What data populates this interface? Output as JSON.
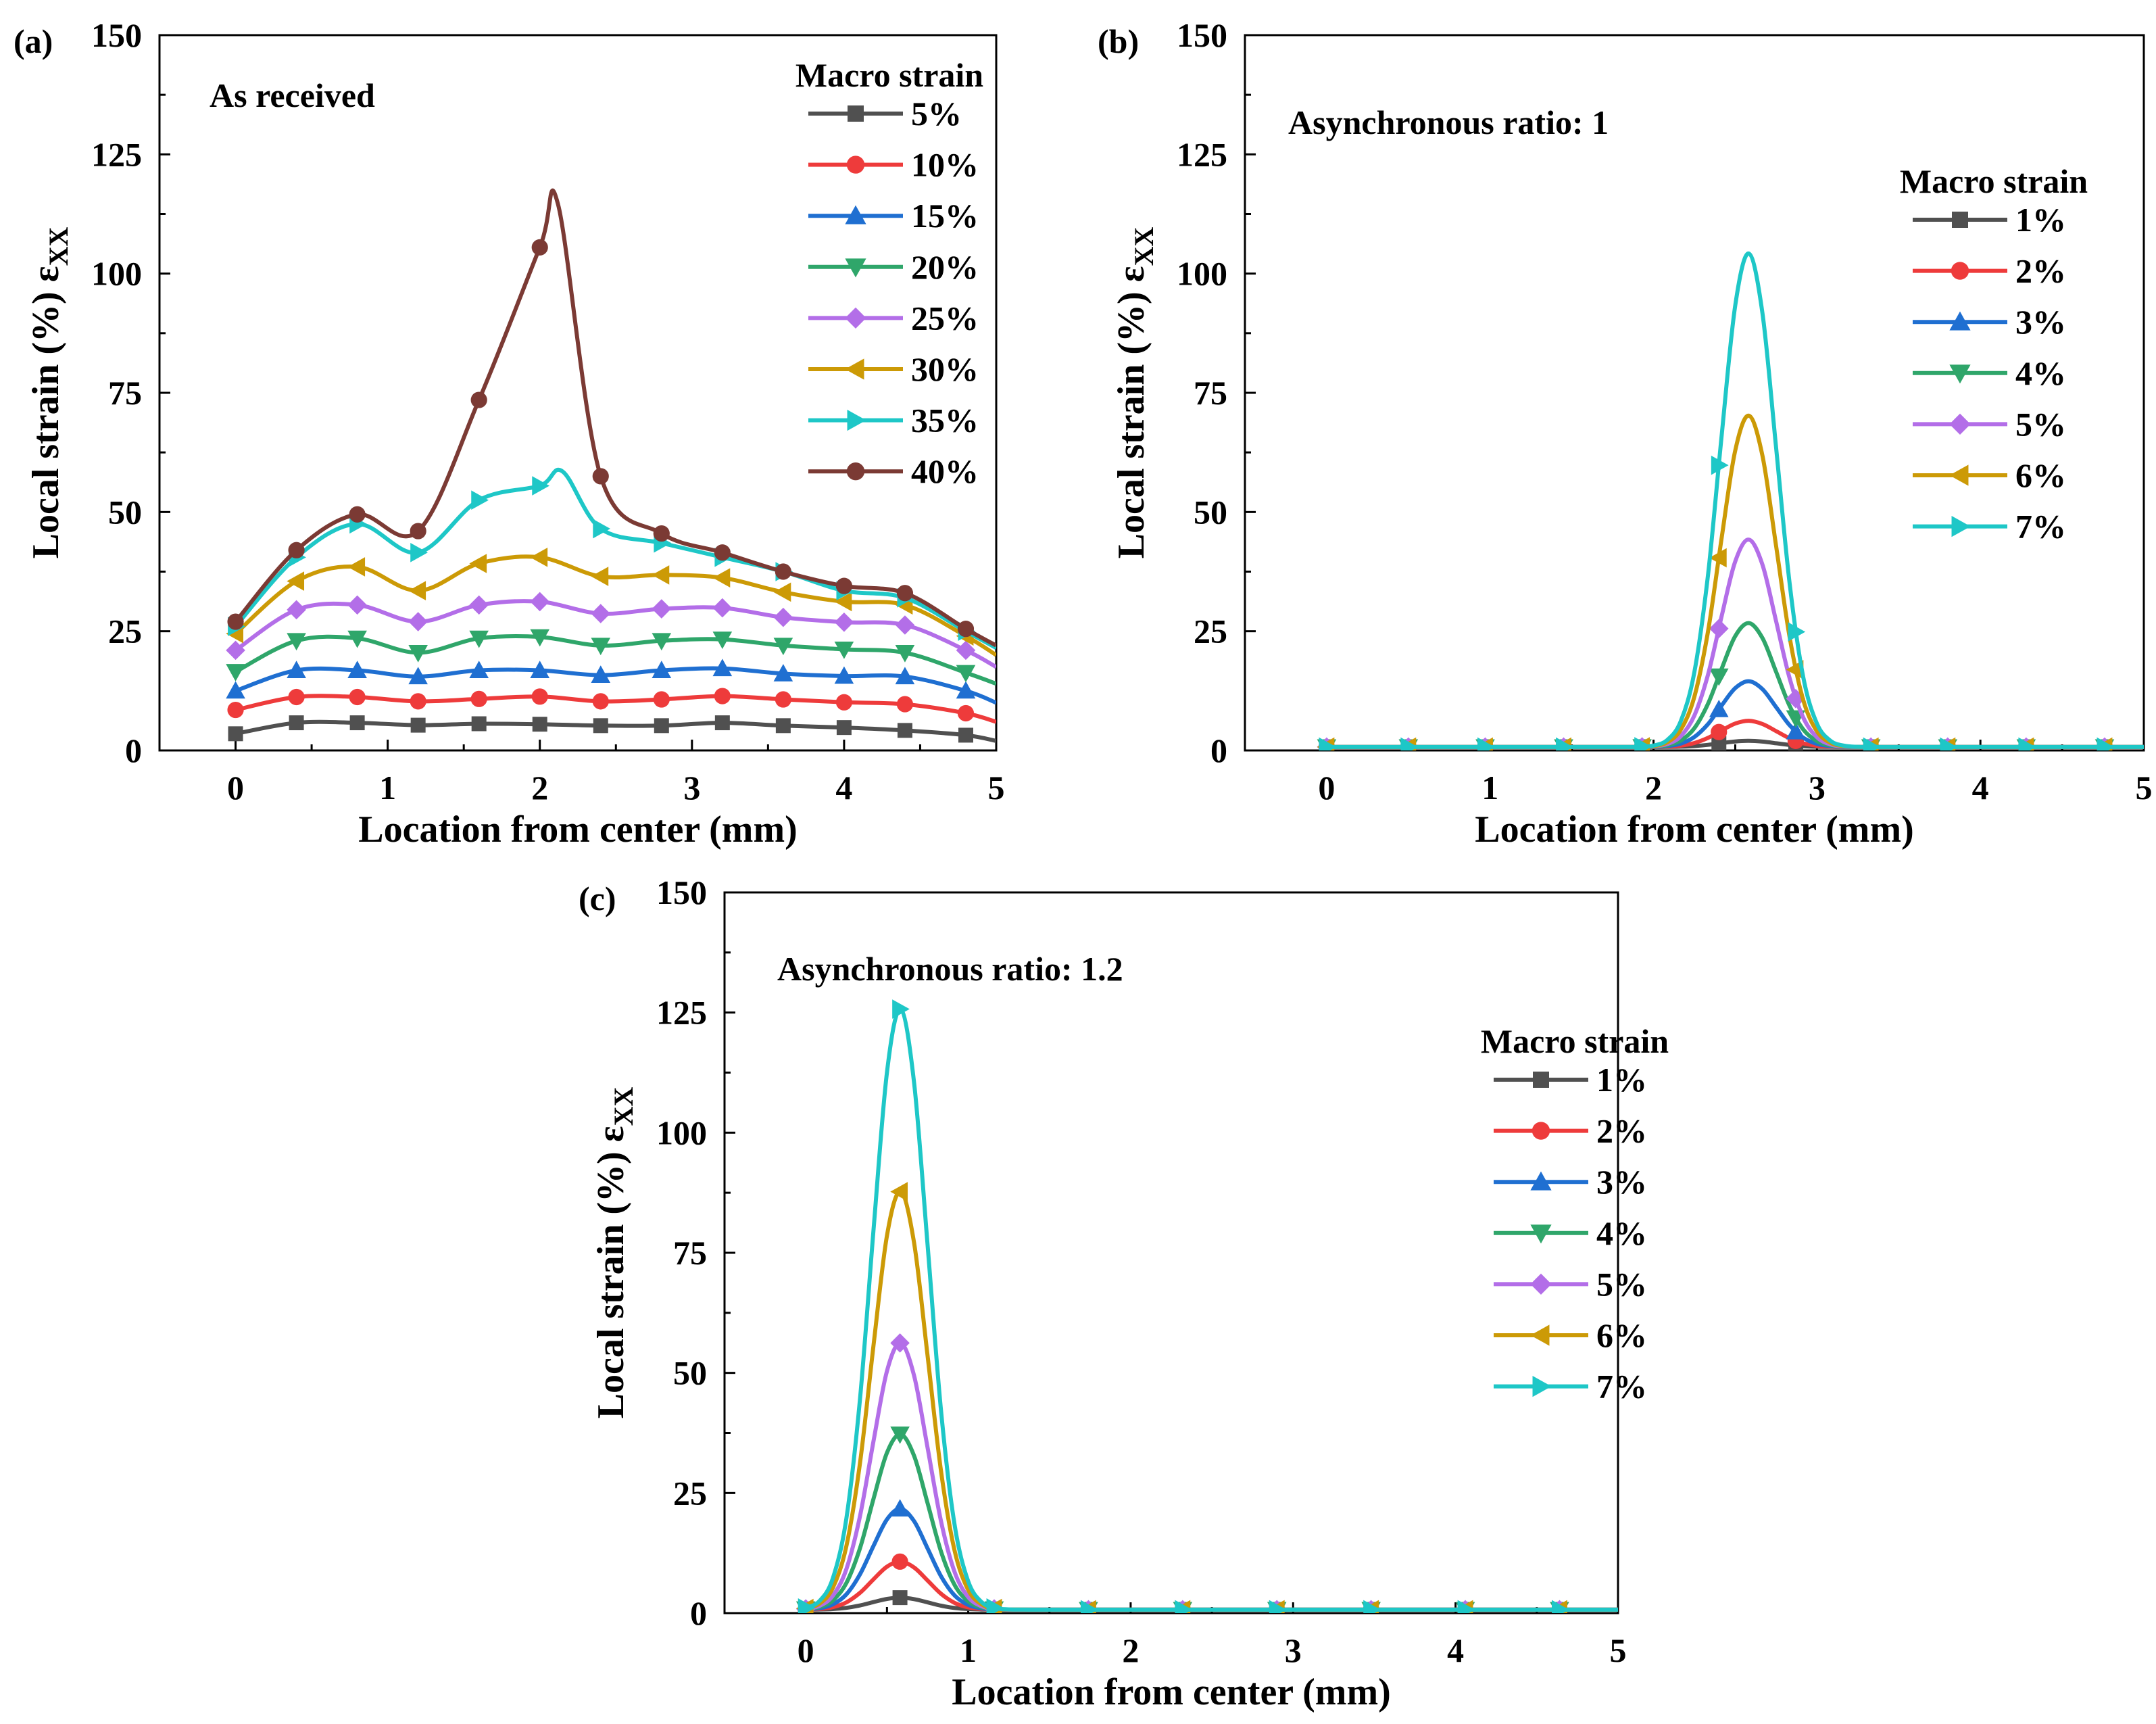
{
  "figure": {
    "panels": [
      "a",
      "b",
      "c"
    ]
  },
  "chart_data": [
    {
      "id": "a",
      "panel_label": "(a)",
      "type": "line",
      "annotation": "As received",
      "xlabel": "Location from center (mm)",
      "ylabel": "Local strain (%) ε",
      "ylabel_sub": "XX",
      "xlim": [
        -0.5,
        5
      ],
      "ylim": [
        0,
        150
      ],
      "xticks": [
        0,
        1,
        2,
        3,
        4,
        5
      ],
      "yticks": [
        0,
        25,
        50,
        75,
        100,
        125,
        150
      ],
      "grid": false,
      "legend_title": "Macro strain",
      "legend_position": "top-right",
      "x": [
        0,
        0.4,
        0.8,
        1.2,
        1.6,
        2.0,
        2.4,
        2.8,
        3.2,
        3.6,
        4.0,
        4.4,
        4.8,
        5.0
      ],
      "series": [
        {
          "name": "5%",
          "color": "#505050",
          "marker": "square",
          "values": [
            3.5,
            5.8,
            5.8,
            5.3,
            5.6,
            5.5,
            5.2,
            5.2,
            5.8,
            5.2,
            4.8,
            4.2,
            3.2,
            2
          ]
        },
        {
          "name": "10%",
          "color": "#ee3b3b",
          "marker": "circle",
          "values": [
            8.5,
            11.2,
            11.2,
            10.3,
            10.8,
            11.3,
            10.3,
            10.7,
            11.4,
            10.7,
            10.1,
            9.7,
            7.8,
            6
          ]
        },
        {
          "name": "15%",
          "color": "#1f6fd1",
          "marker": "triangle-up",
          "values": [
            12.5,
            16.8,
            16.8,
            15.5,
            16.8,
            16.8,
            15.8,
            16.8,
            17.2,
            16.1,
            15.6,
            15.5,
            12.5,
            10
          ]
        },
        {
          "name": "20%",
          "color": "#2fa66a",
          "marker": "triangle-down",
          "values": [
            16.5,
            23,
            23.5,
            20.5,
            23.5,
            23.8,
            22,
            23,
            23.3,
            22,
            21.2,
            20.5,
            16.3,
            14
          ]
        },
        {
          "name": "25%",
          "color": "#b36ee8",
          "marker": "diamond",
          "values": [
            21,
            29.5,
            30.5,
            27,
            30.5,
            31.2,
            28.7,
            29.7,
            29.9,
            27.9,
            26.9,
            26.3,
            21,
            17.5
          ]
        },
        {
          "name": "30%",
          "color": "#cc9a06",
          "marker": "triangle-left",
          "values": [
            24.5,
            35.5,
            38.5,
            33.5,
            39.2,
            40.5,
            36.5,
            36.8,
            36.2,
            33.2,
            31.2,
            30.5,
            24,
            20
          ]
        },
        {
          "name": "35%",
          "color": "#1ec7c7",
          "marker": "triangle-right",
          "values": [
            26,
            40.5,
            47.5,
            41.5,
            52.5,
            55.5,
            46.5,
            43.5,
            40.5,
            37.5,
            33.5,
            32,
            25,
            21.5
          ]
        },
        {
          "name": "40%",
          "color": "#7b3a34",
          "marker": "circle",
          "values": [
            27,
            42,
            49.5,
            46,
            73.5,
            105.5,
            57.5,
            45.5,
            41.5,
            37.5,
            34.5,
            33,
            25.5,
            22
          ]
        }
      ],
      "peak_40pct": {
        "x": 2.12,
        "y": 114.5
      },
      "peak_35pct": {
        "x": 2.15,
        "y": 58.5
      }
    },
    {
      "id": "b",
      "panel_label": "(b)",
      "type": "line",
      "annotation": "Asynchronous ratio: 1",
      "xlabel": "Location from center (mm)",
      "ylabel": "Local strain (%) ε",
      "ylabel_sub": "XX",
      "xlim": [
        -0.5,
        5
      ],
      "ylim": [
        0,
        150
      ],
      "xticks": [
        0,
        1,
        2,
        3,
        4,
        5
      ],
      "yticks": [
        0,
        25,
        50,
        75,
        100,
        125,
        150
      ],
      "grid": false,
      "legend_title": "Macro strain",
      "legend_position": "right",
      "peak_x": 2.58,
      "peak_width": 0.17,
      "series": [
        {
          "name": "1%",
          "color": "#505050",
          "marker": "square",
          "peak": 1.3
        },
        {
          "name": "2%",
          "color": "#ee3b3b",
          "marker": "circle",
          "peak": 5.5
        },
        {
          "name": "3%",
          "color": "#1f6fd1",
          "marker": "triangle-up",
          "peak": 13.8
        },
        {
          "name": "4%",
          "color": "#2fa66a",
          "marker": "triangle-down",
          "peak": 26
        },
        {
          "name": "5%",
          "color": "#b36ee8",
          "marker": "diamond",
          "peak": 43.5
        },
        {
          "name": "6%",
          "color": "#cc9a06",
          "marker": "triangle-left",
          "peak": 69.5
        },
        {
          "name": "7%",
          "color": "#1ec7c7",
          "marker": "triangle-right",
          "peak": 103.5
        }
      ]
    },
    {
      "id": "c",
      "panel_label": "(c)",
      "type": "line",
      "annotation": "Asynchronous ratio: 1.2",
      "xlabel": "Location from center (mm)",
      "ylabel": "Local strain (%) ε",
      "ylabel_sub": "XX",
      "xlim": [
        -0.5,
        5
      ],
      "ylim": [
        0,
        150
      ],
      "xticks": [
        0,
        1,
        2,
        3,
        4,
        5
      ],
      "yticks": [
        0,
        25,
        50,
        75,
        100,
        125,
        150
      ],
      "grid": false,
      "legend_title": "Macro strain",
      "legend_position": "right",
      "peak_x": 0.58,
      "peak_width": 0.17,
      "series": [
        {
          "name": "1%",
          "color": "#505050",
          "marker": "square",
          "peak": 2.5
        },
        {
          "name": "2%",
          "color": "#ee3b3b",
          "marker": "circle",
          "peak": 10
        },
        {
          "name": "3%",
          "color": "#1f6fd1",
          "marker": "triangle-up",
          "peak": 21
        },
        {
          "name": "4%",
          "color": "#2fa66a",
          "marker": "triangle-down",
          "peak": 36.5
        },
        {
          "name": "5%",
          "color": "#b36ee8",
          "marker": "diamond",
          "peak": 55.5
        },
        {
          "name": "6%",
          "color": "#cc9a06",
          "marker": "triangle-left",
          "peak": 87
        },
        {
          "name": "7%",
          "color": "#1ec7c7",
          "marker": "triangle-right",
          "peak": 125
        }
      ]
    }
  ]
}
